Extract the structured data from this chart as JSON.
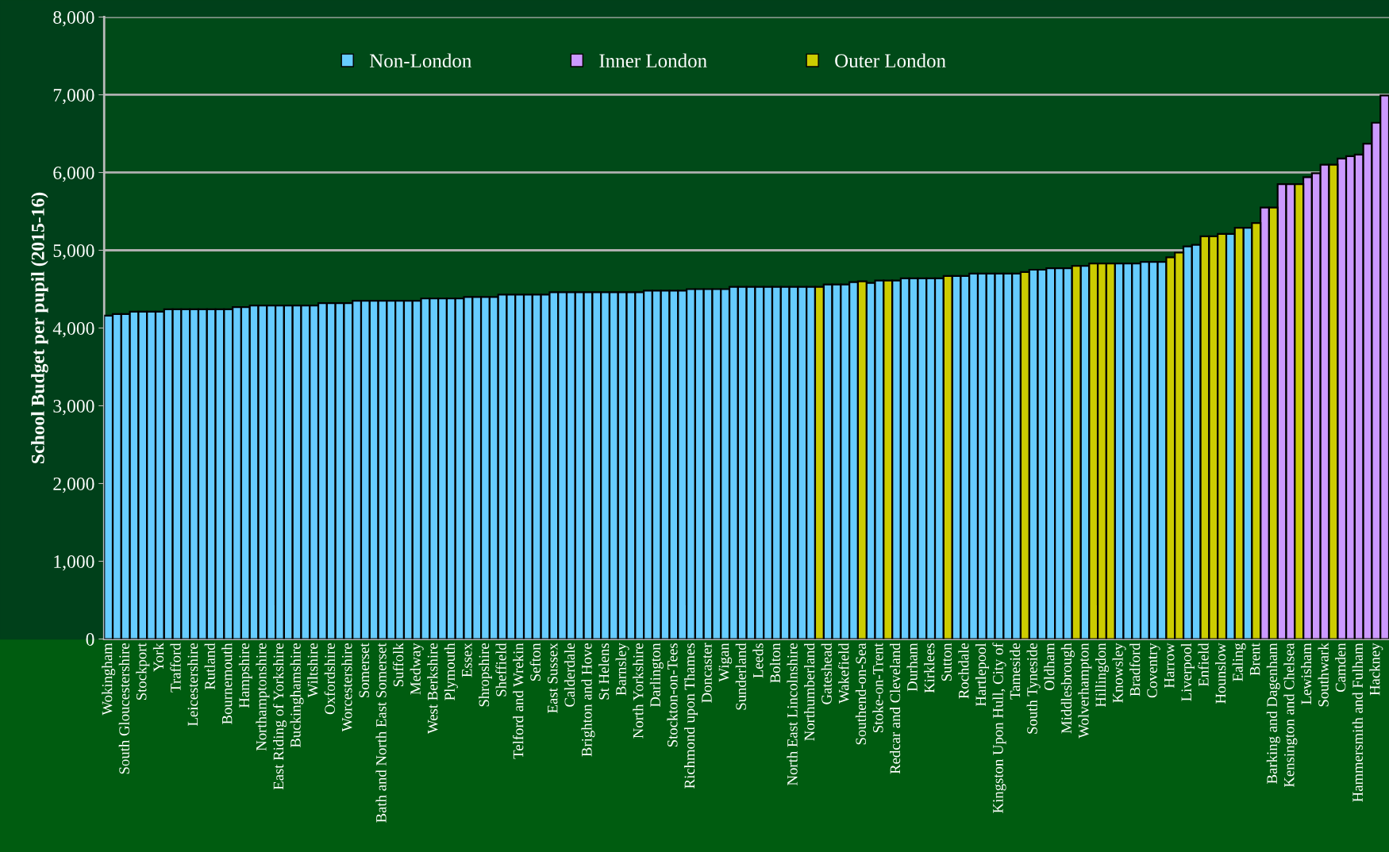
{
  "chart_data": {
    "type": "bar",
    "stacked": true,
    "ylabel": "School Budget per pupil (2015-16)",
    "categories": [
      "Wokingham",
      null,
      "South Gloucestershire",
      null,
      "Stockport",
      null,
      "York",
      null,
      "Trafford",
      null,
      "Leicestershire",
      null,
      "Rutland",
      null,
      "Bournemouth",
      null,
      "Hampshire",
      null,
      "Northamptonshire",
      null,
      "East Riding of Yorkshire",
      null,
      "Buckinghamshire",
      null,
      "Wiltshire",
      null,
      "Oxfordshire",
      null,
      "Worcestershire",
      null,
      "Somerset",
      null,
      "Bath and North East Somerset",
      null,
      "Suffolk",
      null,
      "Medway",
      null,
      "West Berkshire",
      null,
      "Plymouth",
      null,
      "Essex",
      null,
      "Shropshire",
      null,
      "Sheffield",
      null,
      "Telford and Wrekin",
      null,
      "Sefton",
      null,
      "East Sussex",
      null,
      "Calderdale",
      null,
      "Brighton and Hove",
      null,
      "St Helens",
      null,
      "Barnsley",
      null,
      "North Yorkshire",
      null,
      "Darlington",
      null,
      "Stockton-on-Tees",
      null,
      "Richmond upon Thames",
      null,
      "Doncaster",
      null,
      "Wigan",
      null,
      "Sunderland",
      null,
      "Leeds",
      null,
      "Bolton",
      null,
      "North East Lincolnshire",
      null,
      "Northumberland",
      null,
      "Gateshead",
      null,
      "Wakefield",
      null,
      "Southend-on-Sea",
      null,
      "Stoke-on-Trent",
      null,
      "Redcar and Cleveland",
      null,
      "Durham",
      null,
      "Kirklees",
      null,
      "Sutton",
      null,
      "Rochdale",
      null,
      "Hartlepool",
      null,
      "Kingston Upon Hull, City of",
      null,
      "Tameside",
      null,
      "South Tyneside",
      null,
      "Oldham",
      null,
      "Middlesbrough",
      null,
      "Wolverhampton",
      null,
      "Hillingdon",
      null,
      "Knowsley",
      null,
      "Bradford",
      null,
      "Coventry",
      null,
      "Harrow",
      null,
      "Liverpool",
      null,
      "Enfield",
      null,
      "Hounslow",
      null,
      "Ealing",
      null,
      "Brent",
      null,
      "Barking and Dagenham",
      null,
      "Kensington and Chelsea",
      null,
      "Lewisham",
      null,
      "Southwark",
      null,
      "Camden",
      null,
      "Hammersmith and Fulham",
      null,
      "Hackney",
      null
    ],
    "series": [
      {
        "name": "Non-London",
        "color": "#66ccff",
        "values": [
          4160,
          4180,
          4180,
          4210,
          4210,
          4210,
          4210,
          4240,
          4240,
          4240,
          4240,
          4240,
          4240,
          4240,
          4240,
          4270,
          4270,
          4290,
          4290,
          4290,
          4290,
          4290,
          4290,
          4290,
          4290,
          4320,
          4320,
          4320,
          4320,
          4350,
          4350,
          4350,
          4350,
          4350,
          4350,
          4350,
          4350,
          4380,
          4380,
          4380,
          4380,
          4380,
          4400,
          4400,
          4400,
          4400,
          4430,
          4430,
          4430,
          4430,
          4430,
          4430,
          4460,
          4460,
          4460,
          4460,
          4460,
          4460,
          4460,
          4460,
          4460,
          4460,
          4460,
          4480,
          4480,
          4480,
          4480,
          4480,
          4500,
          4500,
          4500,
          4500,
          4500,
          4530,
          4530,
          4530,
          4530,
          4530,
          4530,
          4530,
          4530,
          4530,
          4530,
          null,
          4560,
          4560,
          4560,
          4590,
          null,
          4580,
          4610,
          null,
          4610,
          4640,
          4640,
          4640,
          4640,
          4640,
          null,
          4670,
          4670,
          4700,
          4700,
          4700,
          4700,
          4700,
          4700,
          null,
          4750,
          4750,
          4770,
          4770,
          4770,
          null,
          4800,
          null,
          null,
          null,
          4830,
          4830,
          4830,
          4850,
          4850,
          4850,
          null,
          null,
          5050,
          5070,
          null,
          null,
          null,
          5210,
          null,
          5290,
          null,
          null,
          null,
          null,
          null,
          null,
          null,
          null,
          null,
          null,
          null,
          null,
          null,
          null,
          null,
          null
        ]
      },
      {
        "name": "Inner London",
        "color": "#cc99ff",
        "values": [
          null,
          null,
          null,
          null,
          null,
          null,
          null,
          null,
          null,
          null,
          null,
          null,
          null,
          null,
          null,
          null,
          null,
          null,
          null,
          null,
          null,
          null,
          null,
          null,
          null,
          null,
          null,
          null,
          null,
          null,
          null,
          null,
          null,
          null,
          null,
          null,
          null,
          null,
          null,
          null,
          null,
          null,
          null,
          null,
          null,
          null,
          null,
          null,
          null,
          null,
          null,
          null,
          null,
          null,
          null,
          null,
          null,
          null,
          null,
          null,
          null,
          null,
          null,
          null,
          null,
          null,
          null,
          null,
          null,
          null,
          null,
          null,
          null,
          null,
          null,
          null,
          null,
          null,
          null,
          null,
          null,
          null,
          null,
          null,
          null,
          null,
          null,
          null,
          null,
          null,
          null,
          null,
          null,
          null,
          null,
          null,
          null,
          null,
          null,
          null,
          null,
          null,
          null,
          null,
          null,
          null,
          null,
          null,
          null,
          null,
          null,
          null,
          null,
          null,
          null,
          null,
          null,
          null,
          null,
          null,
          null,
          null,
          null,
          null,
          null,
          null,
          null,
          null,
          null,
          null,
          null,
          null,
          null,
          null,
          null,
          5550,
          null,
          5850,
          5850,
          null,
          5940,
          5990,
          6100,
          null,
          6180,
          6210,
          6230,
          6370,
          6640,
          6990
        ]
      },
      {
        "name": "Outer London",
        "color": "#cccc00",
        "values": [
          null,
          null,
          null,
          null,
          null,
          null,
          null,
          null,
          null,
          null,
          null,
          null,
          null,
          null,
          null,
          null,
          null,
          null,
          null,
          null,
          null,
          null,
          null,
          null,
          null,
          null,
          null,
          null,
          null,
          null,
          null,
          null,
          null,
          null,
          null,
          null,
          null,
          null,
          null,
          null,
          null,
          null,
          null,
          null,
          null,
          null,
          null,
          null,
          null,
          null,
          null,
          null,
          null,
          null,
          null,
          null,
          null,
          null,
          null,
          null,
          null,
          null,
          null,
          null,
          null,
          null,
          null,
          null,
          null,
          null,
          null,
          null,
          null,
          null,
          null,
          null,
          null,
          null,
          null,
          null,
          null,
          null,
          null,
          4530,
          null,
          null,
          null,
          null,
          4600,
          null,
          null,
          4610,
          null,
          null,
          null,
          null,
          null,
          null,
          4670,
          null,
          null,
          null,
          null,
          null,
          null,
          null,
          null,
          4720,
          null,
          null,
          null,
          null,
          null,
          4800,
          null,
          4830,
          4830,
          4830,
          null,
          null,
          null,
          null,
          null,
          null,
          4910,
          4970,
          null,
          null,
          5180,
          5180,
          5210,
          null,
          5290,
          null,
          5350,
          null,
          5550,
          null,
          null,
          5850,
          null,
          null,
          null,
          6100,
          null,
          null,
          null,
          null,
          null,
          null
        ]
      }
    ],
    "ylim": [
      0,
      8000
    ],
    "yticks": [
      0,
      {
        "value": 1000,
        "label": "1,000"
      },
      {
        "value": 2000,
        "label": "2,000"
      },
      {
        "value": 3000,
        "label": "3,000"
      },
      {
        "value": 4000,
        "label": "4,000"
      },
      {
        "value": 5000,
        "label": "5,000"
      },
      {
        "value": 6000,
        "label": "6,000"
      },
      {
        "value": 7000,
        "label": "7,000"
      },
      {
        "value": 8000,
        "label": "8,000"
      }
    ],
    "grid": "y",
    "legend": "top"
  }
}
